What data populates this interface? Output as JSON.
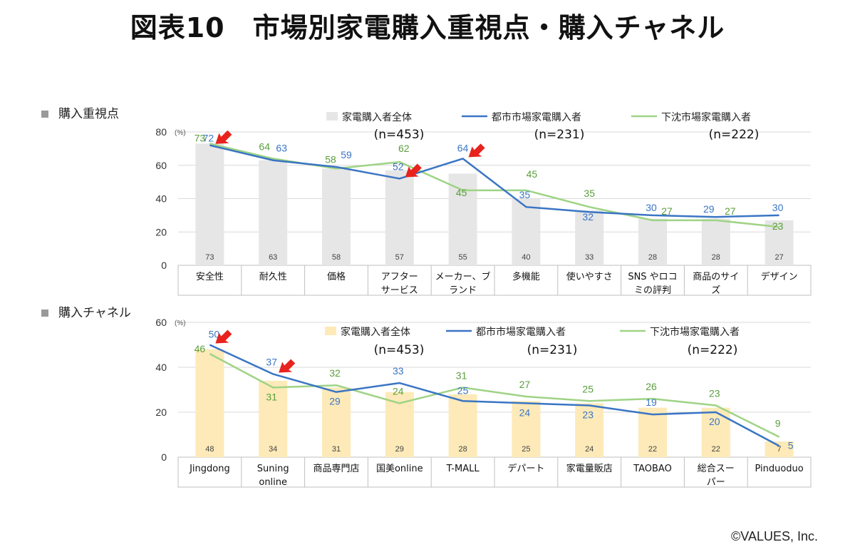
{
  "title": "図表10　市場別家電購入重視点・購入チャネル",
  "copyright": "©VALUES, Inc.",
  "colors": {
    "urban": "#3a75c4",
    "rural": "#9fd385",
    "bar1": "#e6e6e6",
    "bar2": "#fdeab8",
    "arrow": "#e8231d"
  },
  "chart_data": [
    {
      "section_label": "購入重視点",
      "type": "bar+line",
      "unit": "(%)",
      "ylim": [
        0,
        80
      ],
      "yticks": [
        0,
        20,
        40,
        60,
        80
      ],
      "categories": [
        "安全性",
        "耐久性",
        "価格",
        "アフター\nサービス",
        "メーカー、ブ\nランド",
        "多機能",
        "使いやすさ",
        "SNS やロコ\nミの評判",
        "商品のサイ\nズ",
        "デザイン"
      ],
      "series": [
        {
          "name": "家電購入者全体",
          "n": "(n=453)",
          "type": "bar",
          "values": [
            73,
            63,
            58,
            57,
            55,
            40,
            33,
            28,
            28,
            27
          ]
        },
        {
          "name": "都市市場家電購入者",
          "n": "(n=231)",
          "type": "line",
          "values": [
            72,
            63,
            59,
            52,
            64,
            35,
            32,
            30,
            29,
            30
          ]
        },
        {
          "name": "下沈市場家電購入者",
          "n": "(n=222)",
          "type": "line",
          "values": [
            73,
            64,
            58,
            62,
            45,
            45,
            35,
            27,
            27,
            23
          ]
        }
      ],
      "arrows_at": [
        0,
        3,
        4
      ]
    },
    {
      "section_label": "購入チャネル",
      "type": "bar+line",
      "unit": "(%)",
      "ylim": [
        0,
        60
      ],
      "yticks": [
        0,
        20,
        40,
        60
      ],
      "categories": [
        "Jingdong",
        "Suning\nonline",
        "商品専門店",
        "国美online",
        "T-MALL",
        "デパート",
        "家電量販店",
        "TAOBAO",
        "総合スー\nパー",
        "Pinduoduo"
      ],
      "series": [
        {
          "name": "家電購入者全体",
          "n": "(n=453)",
          "type": "bar",
          "values": [
            48,
            34,
            31,
            29,
            28,
            25,
            24,
            22,
            22,
            7
          ]
        },
        {
          "name": "都市市場家電購入者",
          "n": "(n=231)",
          "type": "line",
          "values": [
            50,
            37,
            29,
            33,
            25,
            24,
            23,
            19,
            20,
            5
          ]
        },
        {
          "name": "下沈市場家電購入者",
          "n": "(n=222)",
          "type": "line",
          "values": [
            46,
            31,
            32,
            24,
            31,
            27,
            25,
            26,
            23,
            9
          ]
        }
      ],
      "arrows_at": [
        0,
        1
      ]
    }
  ]
}
